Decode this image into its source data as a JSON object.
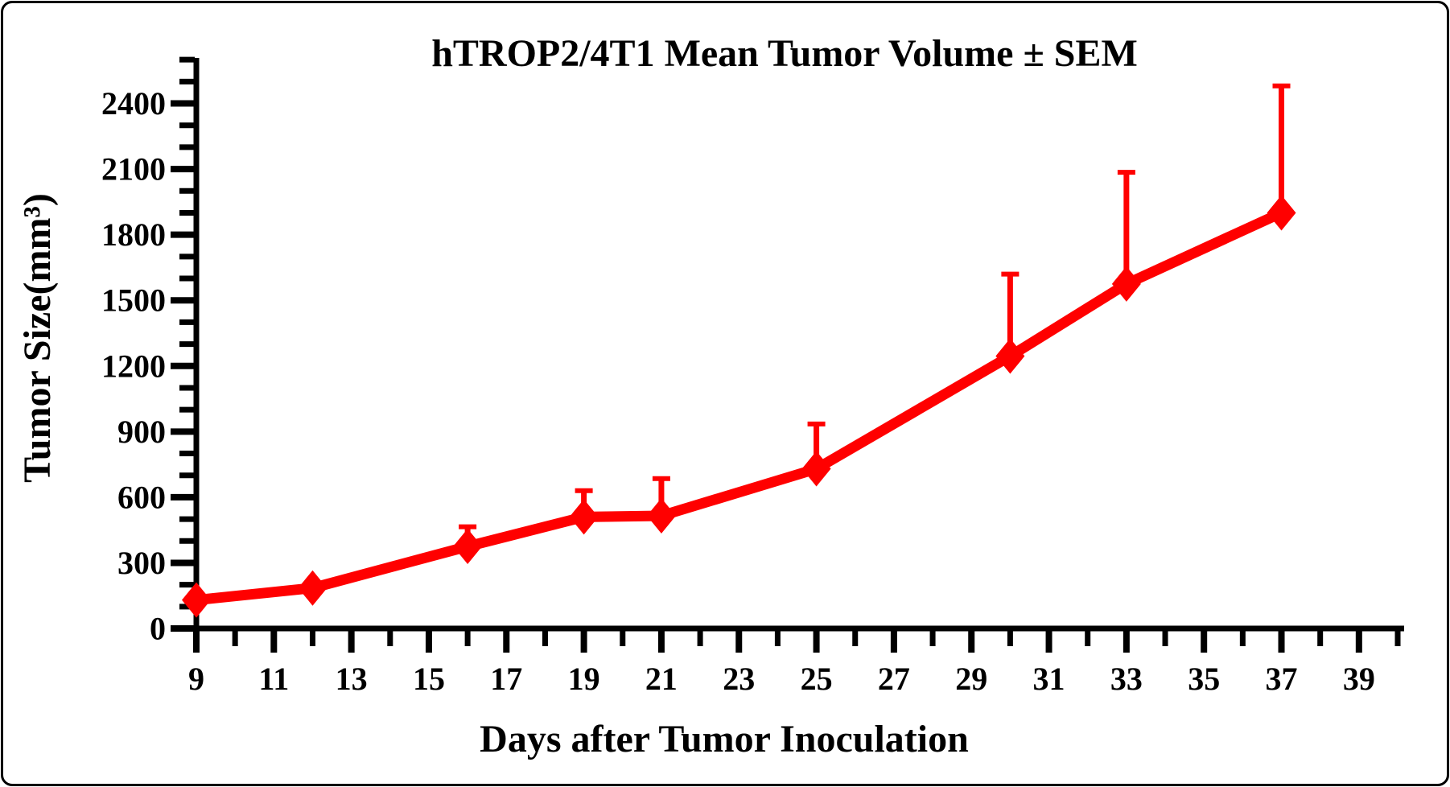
{
  "figure": {
    "background_color": "#ffffff",
    "border_color": "#000000"
  },
  "chart_data": {
    "type": "line",
    "title": "hTROP2/4T1 Mean Tumor Volume ± SEM",
    "xlabel": "Days after Tumor Inoculation",
    "ylabel": "Tumor Size(mm³)",
    "grid": false,
    "legend": false,
    "error_bars": "SEM, drawn upward from each point with capped whiskers",
    "x_axis": {
      "min": 9,
      "max": 40,
      "minor_step": 1,
      "label_step": 2,
      "tick_labels": [
        9,
        11,
        13,
        15,
        17,
        19,
        21,
        23,
        25,
        27,
        29,
        31,
        33,
        35,
        37,
        39
      ]
    },
    "y_axis": {
      "min": 0,
      "max": 2600,
      "major_step": 300,
      "minor_step": 100,
      "tick_labels": [
        0,
        300,
        600,
        900,
        1200,
        1500,
        1800,
        2100,
        2400
      ]
    },
    "series": [
      {
        "name": "hTROP2/4T1",
        "color": "#ff0000",
        "marker": "diamond",
        "x": [
          9,
          12,
          16,
          19,
          21,
          25,
          30,
          33,
          37
        ],
        "y": [
          130,
          185,
          375,
          510,
          515,
          730,
          1245,
          1575,
          1900
        ],
        "sem": [
          0,
          0,
          90,
          120,
          170,
          205,
          375,
          510,
          580
        ]
      }
    ]
  },
  "style": {
    "accent_color": "#ff0000",
    "axis_color": "#000000"
  }
}
